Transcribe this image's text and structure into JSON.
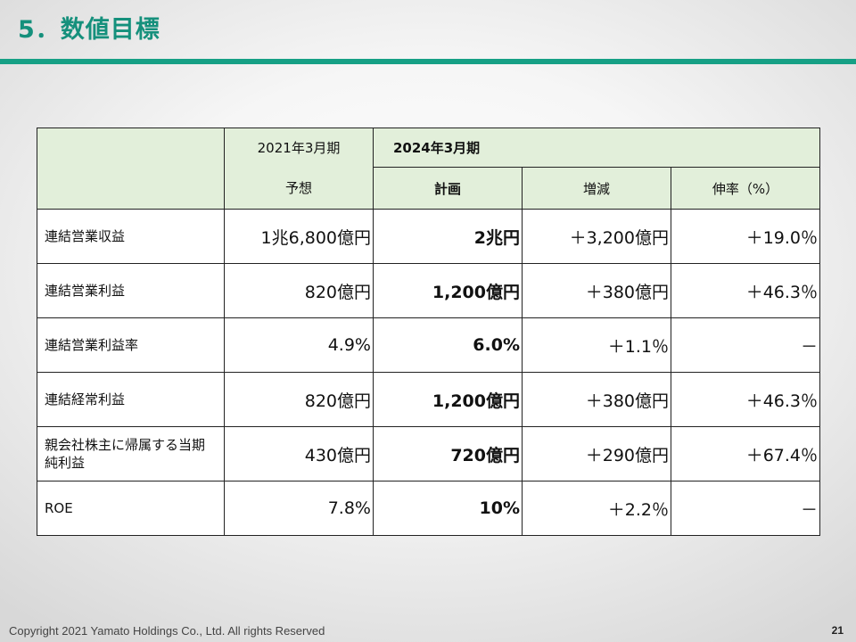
{
  "slide": {
    "title": "5．数値目標",
    "footer": "Copyright 2021 Yamato Holdings Co., Ltd. All rights Reserved",
    "page_number": "21",
    "accent_color": "#16a085"
  },
  "table": {
    "header": {
      "forecast_period": "2021年3月期",
      "forecast_label": "予想",
      "plan_period": "2024年3月期",
      "plan_label": "計画",
      "change_label": "増減",
      "growth_label": "伸率（%）"
    },
    "rows": [
      {
        "label": "連結営業収益",
        "forecast": "1兆6,800億円",
        "plan": "2兆円",
        "change": "＋3,200億円",
        "growth": "＋19.0％"
      },
      {
        "label": "連結営業利益",
        "forecast": "820億円",
        "plan": "1,200億円",
        "change": "＋380億円",
        "growth": "＋46.3％"
      },
      {
        "label": "連結営業利益率",
        "forecast": "4.9%",
        "plan": "6.0%",
        "change": "＋1.1％",
        "growth": "－"
      },
      {
        "label": "連結経常利益",
        "forecast": "820億円",
        "plan": "1,200億円",
        "change": "＋380億円",
        "growth": "＋46.3％"
      },
      {
        "label": "親会社株主に帰属する当期純利益",
        "forecast": "430億円",
        "plan": "720億円",
        "change": "＋290億円",
        "growth": "＋67.4％"
      },
      {
        "label": "ROE",
        "forecast": "7.8%",
        "plan": "10%",
        "change": "＋2.2％",
        "growth": "－"
      }
    ]
  }
}
